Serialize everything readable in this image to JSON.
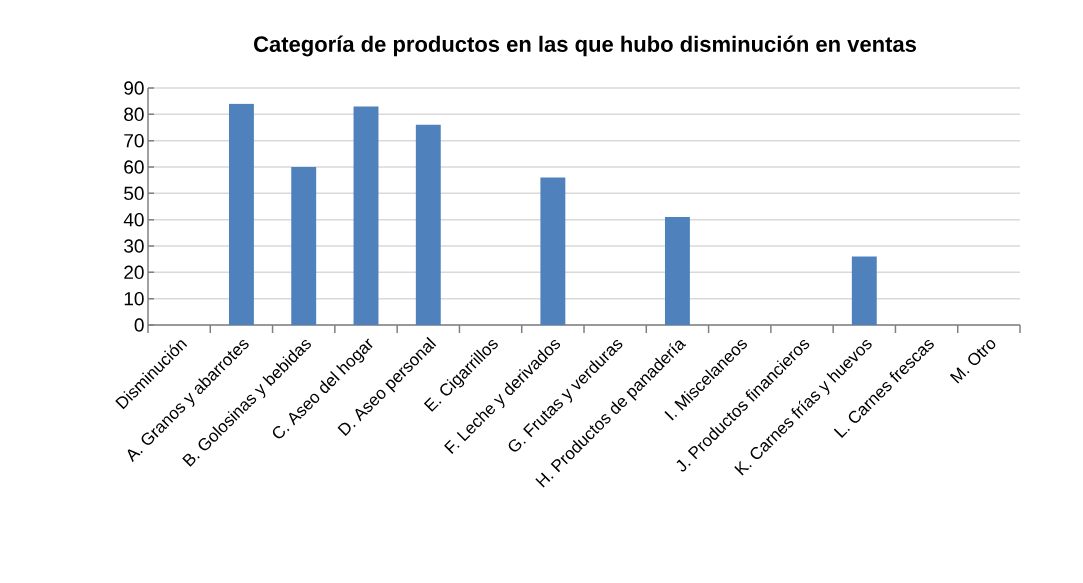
{
  "chart_data": {
    "type": "bar",
    "title": "Categoría de productos en las que hubo disminución en ventas",
    "categories": [
      "Disminución",
      "A. Granos y abarrotes",
      "B. Golosinas y bebidas",
      "C. Aseo del hogar",
      "D. Aseo personal",
      "E. Cigarrillos",
      "F. Leche y derivados",
      "G. Frutas y verduras",
      "H. Productos de panadería",
      "I. Miscelaneos",
      "J. Productos financieros",
      "K. Carnes frías y huevos",
      "L. Carnes frescas",
      "M. Otro"
    ],
    "values": [
      null,
      84,
      60,
      83,
      76,
      null,
      56,
      null,
      41,
      null,
      null,
      26,
      null,
      null
    ],
    "color": "#4f81bd",
    "ylim": [
      0,
      90
    ],
    "yticks": [
      0,
      10,
      20,
      30,
      40,
      50,
      60,
      70,
      80,
      90
    ],
    "grid": "y"
  }
}
